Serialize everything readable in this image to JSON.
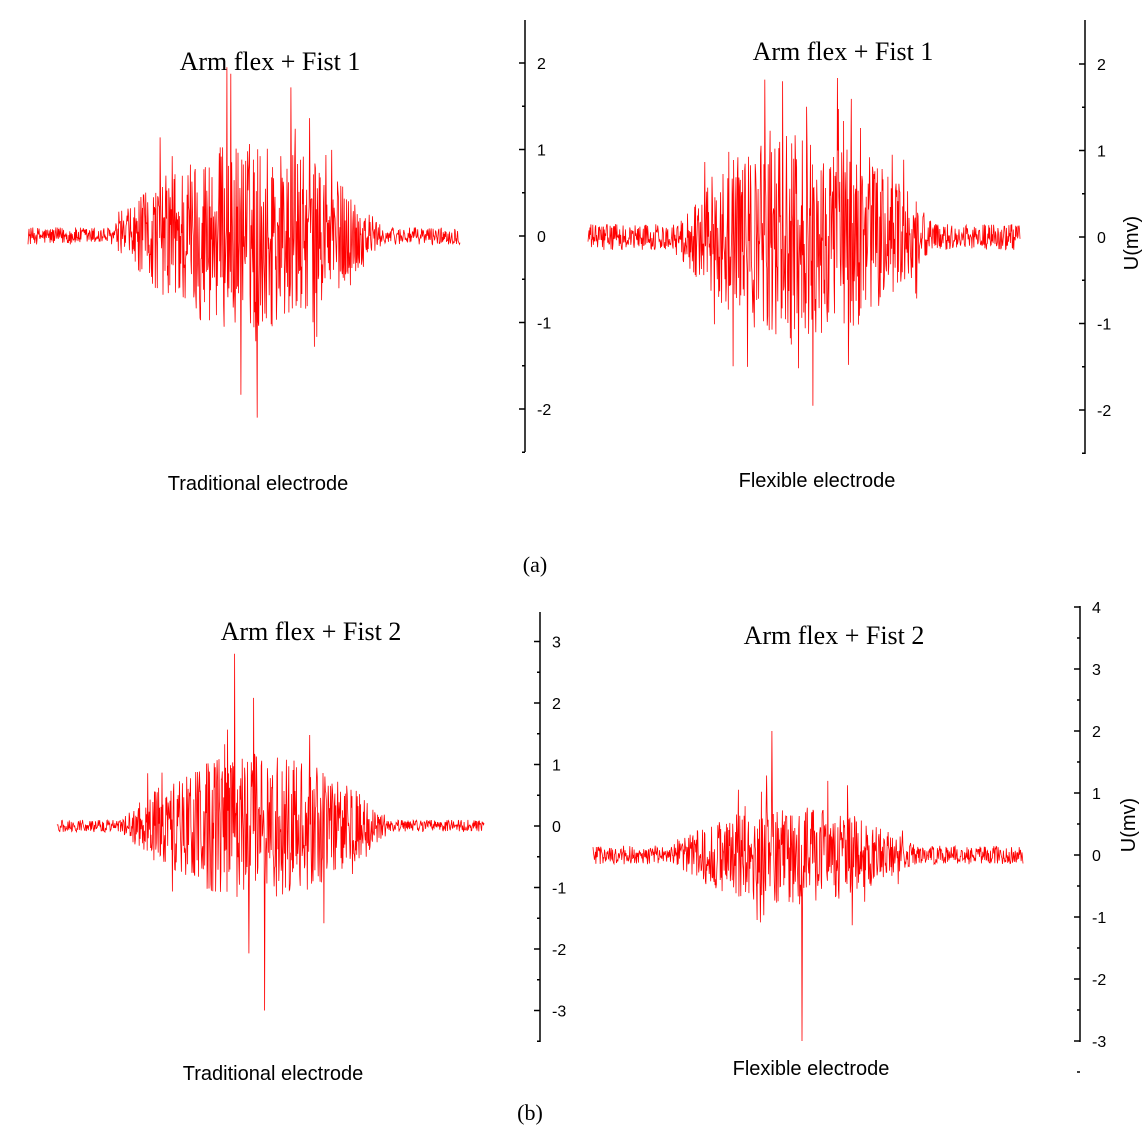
{
  "figure": {
    "panel_a_label": "(a)",
    "panel_b_label": "(b)"
  },
  "chart_data": [
    {
      "type": "line",
      "panel": "a",
      "title": "Arm flex + Fist 1",
      "caption": "Traditional electrode",
      "ylabel": "",
      "ylim": [
        -2.5,
        2.5
      ],
      "yticks": [
        "2",
        "1",
        "0",
        "-1",
        "-2"
      ],
      "tick_values": [
        2,
        1,
        0,
        -1,
        -2
      ],
      "series": [
        {
          "color": "#ff0000",
          "values": [],
          "envelope": {
            "baseline_amp": 0.1,
            "burst_start": 0.2,
            "burst_end": 0.82,
            "burst_peak_amp": 1.1,
            "max": 1.95,
            "min": -2.1,
            "offset": 0
          }
        }
      ]
    },
    {
      "type": "line",
      "panel": "a",
      "title": "Arm flex + Fist 1",
      "caption": "Flexible electrode",
      "ylabel": "U(mv)",
      "ylim": [
        -2.5,
        2.5
      ],
      "yticks": [
        "2",
        "1",
        "0",
        "-1",
        "-2"
      ],
      "tick_values": [
        2,
        1,
        0,
        -1,
        -2
      ],
      "series": [
        {
          "color": "#ff0000",
          "values": [],
          "envelope": {
            "baseline_amp": 0.15,
            "burst_start": 0.2,
            "burst_end": 0.8,
            "burst_peak_amp": 1.2,
            "max": 1.8,
            "min": -1.95,
            "offset": 0
          }
        }
      ]
    },
    {
      "type": "line",
      "panel": "b",
      "title": "Arm flex + Fist 2",
      "caption": "Traditional electrode",
      "ylabel": "",
      "ylim": [
        -3.5,
        3.5
      ],
      "yticks": [
        "3",
        "2",
        "1",
        "0",
        "-1",
        "-2",
        "-3"
      ],
      "tick_values": [
        3,
        2,
        1,
        0,
        -1,
        -2,
        -3
      ],
      "series": [
        {
          "color": "#ff0000",
          "values": [],
          "envelope": {
            "baseline_amp": 0.1,
            "burst_start": 0.15,
            "burst_end": 0.78,
            "burst_peak_amp": 1.2,
            "max": 2.8,
            "min": -3.0,
            "offset": 0
          }
        }
      ]
    },
    {
      "type": "line",
      "panel": "b",
      "title": "Arm flex + Fist 2",
      "caption": "Flexible electrode",
      "ylabel": "U(mv)",
      "ylim": [
        -3,
        4
      ],
      "yticks": [
        "4",
        "3",
        "2",
        "1",
        "0",
        "-1",
        "-2",
        "-3"
      ],
      "tick_values": [
        4,
        3,
        2,
        1,
        0,
        -1,
        -2,
        -3
      ],
      "series": [
        {
          "color": "#ff0000",
          "values": [],
          "envelope": {
            "baseline_amp": 0.15,
            "burst_start": 0.18,
            "burst_end": 0.75,
            "burst_peak_amp": 0.8,
            "max": 2.0,
            "min": -3.0,
            "offset": 0
          }
        }
      ]
    }
  ]
}
